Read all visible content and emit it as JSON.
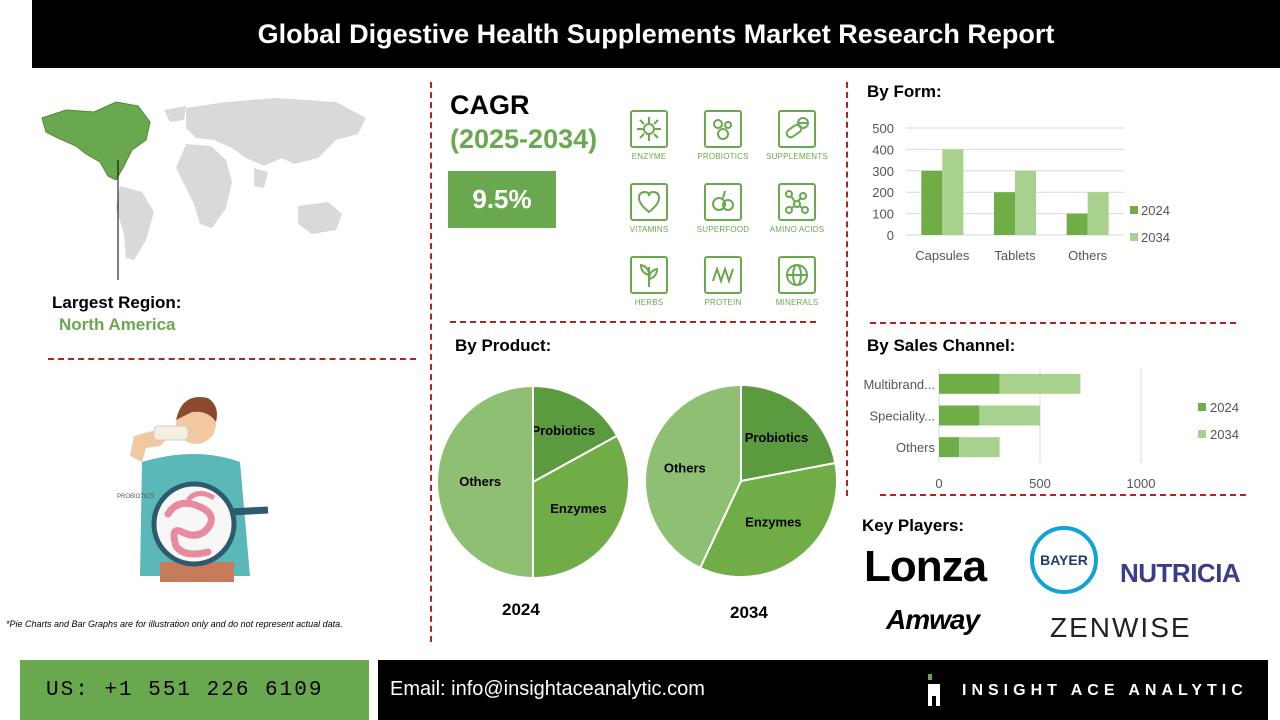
{
  "title": "Global Digestive Health Supplements Market Research Report",
  "region": {
    "label": "Largest Region:",
    "value": "North America"
  },
  "cagr": {
    "label": "CAGR",
    "period": "(2025-2034)",
    "value": "9.5%"
  },
  "icons": [
    {
      "label": "ENZYME",
      "icon": "enzyme-icon"
    },
    {
      "label": "PROBIOTICS",
      "icon": "probiotics-icon"
    },
    {
      "label": "SUPPLEMENTS",
      "icon": "supplements-icon"
    },
    {
      "label": "VITAMINS",
      "icon": "vitamins-icon"
    },
    {
      "label": "SUPERFOOD",
      "icon": "superfood-icon"
    },
    {
      "label": "AMINO ACIDS",
      "icon": "amino-acids-icon"
    },
    {
      "label": "HERBS",
      "icon": "herbs-icon"
    },
    {
      "label": "PROTEIN",
      "icon": "protein-icon"
    },
    {
      "label": "MINERALS",
      "icon": "minerals-icon"
    }
  ],
  "colors": {
    "accent": "#6aa84f",
    "dark_green": "#5b9a3e",
    "light_green": "#a9d18e",
    "mid_green": "#70ad47",
    "pale_green": "#8fbf73",
    "divider": "#b22222"
  },
  "illustration": {
    "caption": "PROBIOTICS"
  },
  "footnote": "*Pie Charts and Bar Graphs are for illustration only and do not represent actual data.",
  "key_players": {
    "title": "Key Players:",
    "names": [
      "Lonza",
      "BAYER",
      "NUTRICIA",
      "Amway",
      "ZENWISE"
    ]
  },
  "footer": {
    "phone": "US: +1 551 226 6109",
    "email": "Email: info@insightaceanalytic.com",
    "brand": "INSIGHT ACE ANALYTIC"
  },
  "chart_data": [
    {
      "type": "bar",
      "title": "By Form:",
      "categories": [
        "Capsules",
        "Tablets",
        "Others"
      ],
      "series": [
        {
          "name": "2024",
          "values": [
            300,
            200,
            100
          ]
        },
        {
          "name": "2034",
          "values": [
            400,
            300,
            200
          ]
        }
      ],
      "ylim": [
        0,
        500
      ],
      "yticks": [
        0,
        100,
        200,
        300,
        400,
        500
      ],
      "legend": "right",
      "grid": true
    },
    {
      "type": "pie",
      "title": "By Product:",
      "pies": [
        {
          "label": "2024",
          "slices": [
            {
              "name": "Probiotics",
              "value": 17
            },
            {
              "name": "Enzymes",
              "value": 33
            },
            {
              "name": "Others",
              "value": 50
            }
          ]
        },
        {
          "label": "2034",
          "slices": [
            {
              "name": "Probiotics",
              "value": 22
            },
            {
              "name": "Enzymes",
              "value": 35
            },
            {
              "name": "Others",
              "value": 43
            }
          ]
        }
      ]
    },
    {
      "type": "bar",
      "orientation": "horizontal",
      "stacked": true,
      "title": "By Sales Channel:",
      "categories": [
        "Multibrand...",
        "Speciality...",
        "Others"
      ],
      "series": [
        {
          "name": "2024",
          "values": [
            300,
            200,
            100
          ]
        },
        {
          "name": "2034",
          "values": [
            400,
            300,
            200
          ]
        }
      ],
      "xlim": [
        0,
        1200
      ],
      "xticks": [
        0,
        500,
        1000
      ],
      "legend": "right",
      "grid": true
    }
  ]
}
